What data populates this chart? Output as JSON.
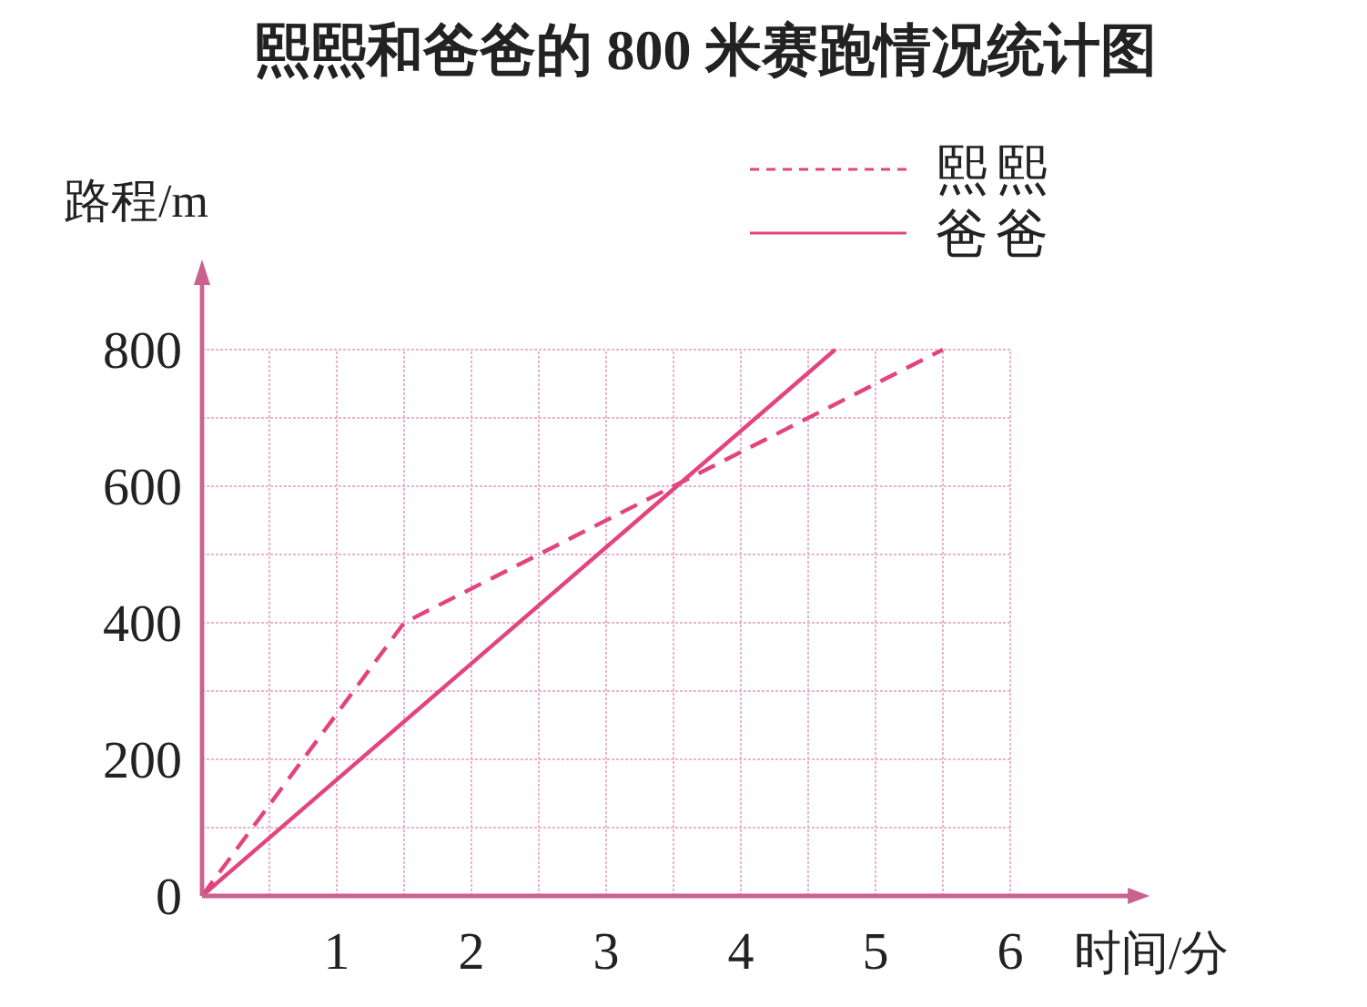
{
  "chart_data": {
    "type": "line",
    "title": "熙熙和爸爸的 800 米赛跑情况统计图",
    "xlabel": "时间/分",
    "ylabel": "路程/m",
    "xlim": [
      0,
      6.9
    ],
    "ylim": [
      0,
      900
    ],
    "xticks": [
      {
        "value": 0.5,
        "label": null
      },
      1,
      {
        "value": 1.5,
        "label": null
      },
      2,
      {
        "value": 2.5,
        "label": null
      },
      3,
      {
        "value": 3.5,
        "label": null
      },
      4,
      {
        "value": 4.5,
        "label": null
      },
      5,
      {
        "value": 5.5,
        "label": null
      },
      6
    ],
    "yticks": [
      0,
      {
        "value": 100,
        "label": null
      },
      200,
      {
        "value": 300,
        "label": null
      },
      400,
      {
        "value": 500,
        "label": null
      },
      600,
      {
        "value": 700,
        "label": null
      },
      800
    ],
    "grid": true,
    "legend": "top right",
    "series": [
      {
        "name": "熙熙",
        "color": "#e2447c",
        "line_style": "dashed",
        "x": [
          0,
          1.5,
          3.5,
          5.5
        ],
        "values": [
          0,
          400,
          600,
          800
        ]
      },
      {
        "name": "爸爸",
        "color": "#e2447c",
        "line_style": "solid",
        "x": [
          0,
          4.7
        ],
        "values": [
          0,
          800
        ]
      }
    ]
  }
}
